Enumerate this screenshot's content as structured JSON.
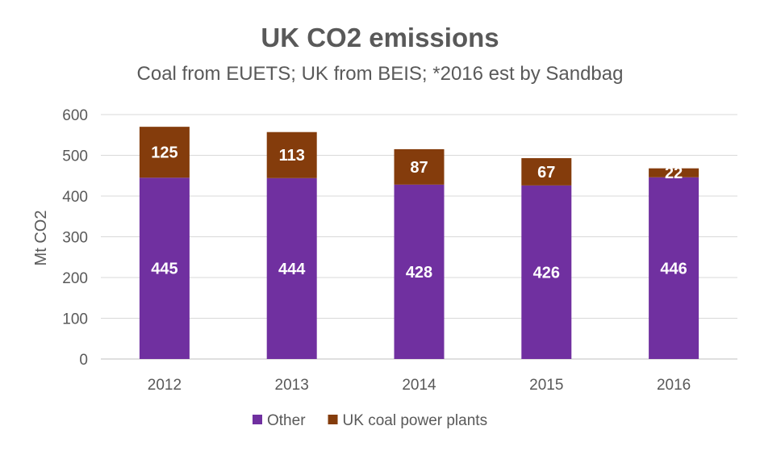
{
  "chart_data": {
    "type": "bar",
    "stacked": true,
    "title": "UK CO2 emissions",
    "subtitle": "Coal from EUETS; UK from BEIS; *2016 est by Sandbag",
    "xlabel": "",
    "ylabel": "Mt CO2",
    "ylim": [
      0,
      600
    ],
    "yticks": [
      0,
      100,
      200,
      300,
      400,
      500,
      600
    ],
    "grid": true,
    "legend_position": "bottom",
    "categories": [
      "2012",
      "2013",
      "2014",
      "2015",
      "2016"
    ],
    "series": [
      {
        "name": "Other",
        "color": "#7030a0",
        "values": [
          445,
          444,
          428,
          426,
          446
        ]
      },
      {
        "name": "UK coal power plants",
        "color": "#843c0c",
        "values": [
          125,
          113,
          87,
          67,
          22
        ]
      }
    ]
  }
}
